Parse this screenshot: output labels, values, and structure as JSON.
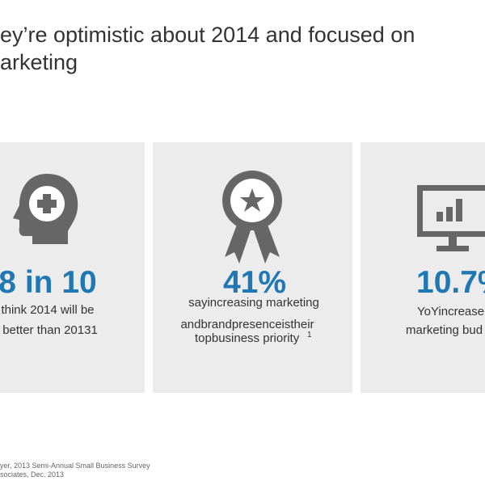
{
  "title": {
    "lines": [
      "ey’re optimistic about 2014 and focused on",
      "arketing"
    ]
  },
  "cards": [
    {
      "stat": "8 in 10",
      "lines": [
        "think 2014 will be",
        "better than 20131"
      ]
    },
    {
      "stat": "41%",
      "lines": [
        "sayincreasing marketing",
        "andbrandpresenceistheir",
        "topbusiness priority"
      ],
      "marker": "1"
    },
    {
      "stat": "10.7%",
      "lines": [
        "YoYincrease",
        "marketing bud"
      ]
    }
  ],
  "footnote": {
    "lines": [
      "yer, 2013 Semi-Annual Small Business Survey",
      "sociates, Dec. 2013"
    ]
  }
}
